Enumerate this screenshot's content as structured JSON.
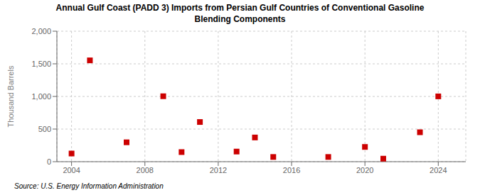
{
  "chart_data": {
    "type": "scatter",
    "title": "Annual Gulf Coast (PADD 3) Imports from Persian Gulf Countries of Conventional Gasoline\nBlending Components",
    "y_label": "Thousand Barrels",
    "annotations": [
      "Source: U.S. Energy Information Administration"
    ],
    "x": [
      2004,
      2005,
      2007,
      2009,
      2010,
      2011,
      2013,
      2014,
      2015,
      2018,
      2020,
      2021,
      2023,
      2024
    ],
    "values": [
      125,
      1553,
      297,
      1003,
      147,
      608,
      155,
      371,
      72,
      72,
      226,
      46,
      451,
      1001
    ],
    "color": "#cc0000",
    "marker": "square",
    "xlim": [
      2003.2,
      2025.5
    ],
    "ylim": [
      0,
      2000
    ],
    "xticks": [
      2004,
      2008,
      2012,
      2016,
      2020,
      2024
    ],
    "yticks": [
      0,
      500,
      {
        "value": 1000,
        "label": "1,000"
      },
      {
        "value": 1500,
        "label": "1,500"
      },
      {
        "value": 2000,
        "label": "2,000"
      }
    ],
    "grid": true
  }
}
